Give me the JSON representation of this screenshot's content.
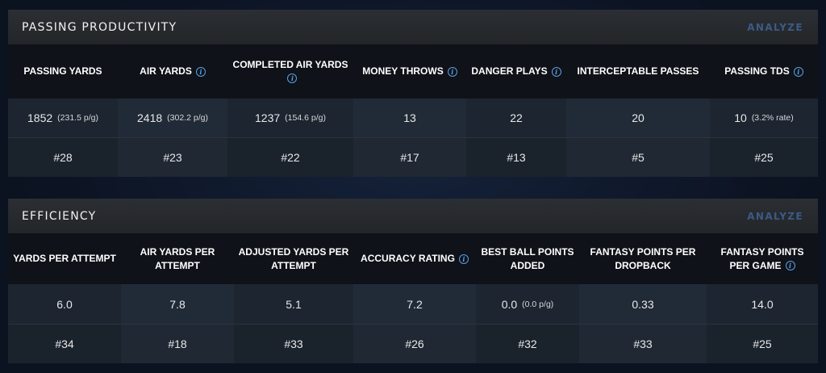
{
  "passing": {
    "title": "PASSING PRODUCTIVITY",
    "analyze_label": "ANALYZE",
    "columns": [
      {
        "header": "PASSING YARDS",
        "info": false,
        "value": "1852",
        "sub": "(231.5 p/g)",
        "rank": "#28"
      },
      {
        "header": "AIR YARDS",
        "info": true,
        "value": "2418",
        "sub": "(302.2 p/g)",
        "rank": "#23"
      },
      {
        "header": "COMPLETED AIR YARDS",
        "info": true,
        "value": "1237",
        "sub": "(154.6 p/g)",
        "rank": "#22"
      },
      {
        "header": "MONEY THROWS",
        "info": true,
        "value": "13",
        "sub": "",
        "rank": "#17"
      },
      {
        "header": "DANGER PLAYS",
        "info": true,
        "value": "22",
        "sub": "",
        "rank": "#13"
      },
      {
        "header": "INTERCEPTABLE PASSES",
        "info": false,
        "value": "20",
        "sub": "",
        "rank": "#5"
      },
      {
        "header": "PASSING TDS",
        "info": true,
        "value": "10",
        "sub": "(3.2% rate)",
        "rank": "#25"
      }
    ]
  },
  "efficiency": {
    "title": "EFFICIENCY",
    "analyze_label": "ANALYZE",
    "columns": [
      {
        "header": "YARDS PER ATTEMPT",
        "info": false,
        "value": "6.0",
        "sub": "",
        "rank": "#34"
      },
      {
        "header": "AIR YARDS PER ATTEMPT",
        "info": false,
        "value": "7.8",
        "sub": "",
        "rank": "#18"
      },
      {
        "header": "ADJUSTED YARDS PER ATTEMPT",
        "info": false,
        "value": "5.1",
        "sub": "",
        "rank": "#33"
      },
      {
        "header": "ACCURACY RATING",
        "info": true,
        "value": "7.2",
        "sub": "",
        "rank": "#26"
      },
      {
        "header": "BEST BALL POINTS ADDED",
        "info": false,
        "value": "0.0",
        "sub": "(0.0 p/g)",
        "rank": "#32"
      },
      {
        "header": "FANTASY POINTS PER DROPBACK",
        "info": false,
        "value": "0.33",
        "sub": "",
        "rank": "#33"
      },
      {
        "header": "FANTASY POINTS PER GAME",
        "info": true,
        "value": "14.0",
        "sub": "",
        "rank": "#25"
      }
    ]
  },
  "icons": {
    "info": "info-icon",
    "info_glyph": "i"
  },
  "colors": {
    "analyze": "#3c5a86",
    "info": "#5aa0e6",
    "header_bar": "#2b2e33"
  }
}
